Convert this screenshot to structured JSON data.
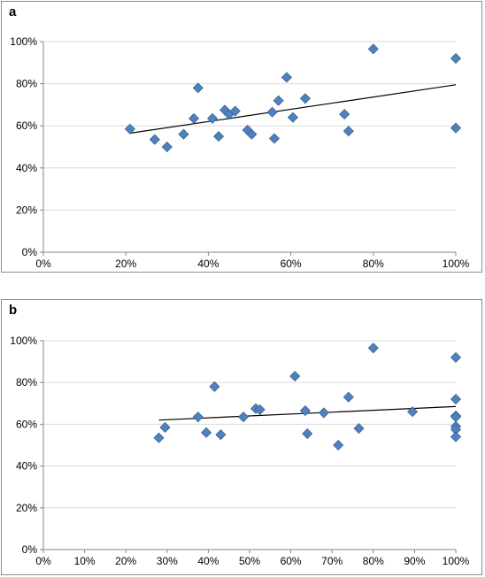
{
  "chart_data": [
    {
      "type": "scatter",
      "panel_label": "a",
      "xlim": [
        0,
        100
      ],
      "ylim": [
        0,
        100
      ],
      "x_ticks": [
        "0%",
        "20%",
        "40%",
        "60%",
        "80%",
        "100%"
      ],
      "x_tick_values": [
        0,
        20,
        40,
        60,
        80,
        100
      ],
      "y_ticks": [
        "0%",
        "20%",
        "40%",
        "60%",
        "80%",
        "100%"
      ],
      "y_tick_values": [
        0,
        20,
        40,
        60,
        80,
        100
      ],
      "grid": "horizontal",
      "marker_color": "#4f81bd",
      "trendline": {
        "x": [
          21,
          100
        ],
        "y": [
          56.5,
          79.5
        ]
      },
      "points": [
        {
          "x": 21,
          "y": 58.5
        },
        {
          "x": 27,
          "y": 53.5
        },
        {
          "x": 30,
          "y": 50
        },
        {
          "x": 34,
          "y": 56
        },
        {
          "x": 36.5,
          "y": 63.5
        },
        {
          "x": 37.5,
          "y": 78
        },
        {
          "x": 41,
          "y": 63.5
        },
        {
          "x": 42.5,
          "y": 55
        },
        {
          "x": 44,
          "y": 67.5
        },
        {
          "x": 45,
          "y": 65.5
        },
        {
          "x": 46.5,
          "y": 67
        },
        {
          "x": 49.5,
          "y": 58
        },
        {
          "x": 50.5,
          "y": 56
        },
        {
          "x": 55.5,
          "y": 66.5
        },
        {
          "x": 56,
          "y": 54
        },
        {
          "x": 57,
          "y": 72
        },
        {
          "x": 59,
          "y": 83
        },
        {
          "x": 60.5,
          "y": 64
        },
        {
          "x": 63.5,
          "y": 73
        },
        {
          "x": 73,
          "y": 65.5
        },
        {
          "x": 74,
          "y": 57.5
        },
        {
          "x": 80,
          "y": 96.5
        },
        {
          "x": 100,
          "y": 92
        },
        {
          "x": 100,
          "y": 59
        }
      ]
    },
    {
      "type": "scatter",
      "panel_label": "b",
      "xlim": [
        0,
        100
      ],
      "ylim": [
        0,
        100
      ],
      "x_ticks": [
        "0%",
        "10%",
        "20%",
        "30%",
        "40%",
        "50%",
        "60%",
        "70%",
        "80%",
        "90%",
        "100%"
      ],
      "x_tick_values": [
        0,
        10,
        20,
        30,
        40,
        50,
        60,
        70,
        80,
        90,
        100
      ],
      "y_ticks": [
        "0%",
        "20%",
        "40%",
        "60%",
        "80%",
        "100%"
      ],
      "y_tick_values": [
        0,
        20,
        40,
        60,
        80,
        100
      ],
      "grid": "horizontal",
      "marker_color": "#4f81bd",
      "trendline": {
        "x": [
          28,
          100
        ],
        "y": [
          62,
          68.5
        ]
      },
      "points": [
        {
          "x": 28,
          "y": 53.5
        },
        {
          "x": 29.5,
          "y": 58.5
        },
        {
          "x": 37.5,
          "y": 63.5
        },
        {
          "x": 39.5,
          "y": 56
        },
        {
          "x": 41.5,
          "y": 78
        },
        {
          "x": 43,
          "y": 55
        },
        {
          "x": 48.5,
          "y": 63.5
        },
        {
          "x": 51.5,
          "y": 67.5
        },
        {
          "x": 52.5,
          "y": 67
        },
        {
          "x": 61,
          "y": 83
        },
        {
          "x": 63.5,
          "y": 66.5
        },
        {
          "x": 64,
          "y": 55.5
        },
        {
          "x": 68,
          "y": 65.5
        },
        {
          "x": 71.5,
          "y": 50
        },
        {
          "x": 74,
          "y": 73
        },
        {
          "x": 76.5,
          "y": 58
        },
        {
          "x": 80,
          "y": 96.5
        },
        {
          "x": 89.5,
          "y": 66
        },
        {
          "x": 100,
          "y": 92
        },
        {
          "x": 100,
          "y": 72
        },
        {
          "x": 100,
          "y": 64
        },
        {
          "x": 100,
          "y": 63.5
        },
        {
          "x": 100,
          "y": 59
        },
        {
          "x": 100,
          "y": 57.5
        },
        {
          "x": 100,
          "y": 54
        }
      ]
    }
  ]
}
